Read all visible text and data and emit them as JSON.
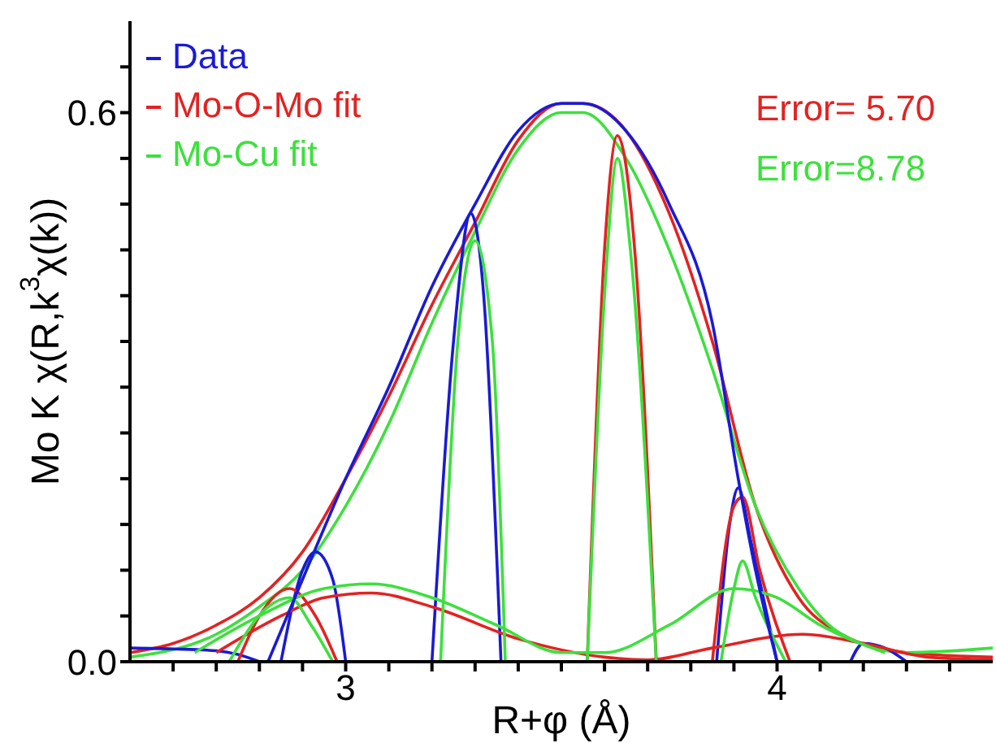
{
  "chart_data": {
    "type": "line",
    "xlabel": "R+φ (Å)",
    "ylabel": "Mo K χ(R,k$^{3}$χ(k))",
    "xlim": [
      2.5,
      4.5
    ],
    "xticks": [
      {
        "value": 2.6,
        "label": null
      },
      {
        "value": 2.7,
        "label": null
      },
      {
        "value": 2.8,
        "label": null
      },
      {
        "value": 2.9,
        "label": null
      },
      3,
      {
        "value": 3.1,
        "label": null
      },
      {
        "value": 3.2,
        "label": null
      },
      {
        "value": 3.3,
        "label": null
      },
      {
        "value": 3.4,
        "label": null
      },
      {
        "value": 3.5,
        "label": null
      },
      {
        "value": 3.6,
        "label": null
      },
      {
        "value": 3.7,
        "label": null
      },
      {
        "value": 3.8,
        "label": null
      },
      {
        "value": 3.9,
        "label": null
      },
      4,
      {
        "value": 4.1,
        "label": null
      },
      {
        "value": 4.2,
        "label": null
      },
      {
        "value": 4.3,
        "label": null
      },
      {
        "value": 4.4,
        "label": null
      }
    ],
    "ylim": [
      0,
      0.7
    ],
    "yticks": [
      {
        "value": 0,
        "label": "0.0"
      },
      {
        "value": 0.05,
        "label": null
      },
      {
        "value": 0.1,
        "label": null
      },
      {
        "value": 0.15,
        "label": null
      },
      {
        "value": 0.2,
        "label": null
      },
      {
        "value": 0.25,
        "label": null
      },
      {
        "value": 0.3,
        "label": null
      },
      {
        "value": 0.35,
        "label": null
      },
      {
        "value": 0.4,
        "label": null
      },
      {
        "value": 0.45,
        "label": null
      },
      {
        "value": 0.5,
        "label": null
      },
      {
        "value": 0.55,
        "label": null
      },
      {
        "value": 0.6,
        "label": "0.6"
      },
      {
        "value": 0.65,
        "label": null
      }
    ],
    "grid": false,
    "legend": "top left",
    "marker": "none",
    "line_style": "solid",
    "annotations": [
      "Error= 5.70",
      "Error=8.78"
    ],
    "series": [
      {
        "name": "Data",
        "color": "#1a1ad6",
        "x": [
          2.82,
          2.9,
          3.0,
          3.1,
          3.2,
          3.3,
          3.4,
          3.5,
          3.55,
          3.65,
          3.75,
          3.85,
          3.91,
          3.95,
          4.0
        ],
        "values": [
          0,
          0.09,
          0.2,
          0.3,
          0.41,
          0.5,
          0.58,
          0.61,
          0.61,
          0.58,
          0.5,
          0.37,
          0.2,
          0.1,
          0
        ]
      },
      {
        "name": "Mo-O-Mo fit",
        "color": "#e32222",
        "x": [
          2.5,
          2.6,
          2.7,
          2.8,
          2.9,
          3.0,
          3.1,
          3.2,
          3.3,
          3.4,
          3.5,
          3.55,
          3.65,
          3.75,
          3.85,
          3.95,
          4.05,
          4.15,
          4.3,
          4.5
        ],
        "values": [
          0.01,
          0.02,
          0.04,
          0.07,
          0.12,
          0.2,
          0.29,
          0.39,
          0.48,
          0.57,
          0.61,
          0.61,
          0.58,
          0.49,
          0.35,
          0.17,
          0.07,
          0.03,
          0.01,
          0.005
        ]
      },
      {
        "name": "Mo-Cu fit",
        "color": "#3de03d",
        "x": [
          2.5,
          2.7,
          2.8,
          2.9,
          3.0,
          3.1,
          3.2,
          3.3,
          3.4,
          3.5,
          3.55,
          3.65,
          3.75,
          3.85,
          3.95,
          4.05,
          4.15,
          4.3,
          4.5
        ],
        "values": [
          0.005,
          0.03,
          0.06,
          0.1,
          0.17,
          0.26,
          0.37,
          0.47,
          0.56,
          0.6,
          0.6,
          0.55,
          0.45,
          0.32,
          0.17,
          0.08,
          0.03,
          0.01,
          0.015
        ]
      },
      {
        "color": "#1a1ad6",
        "x": [
          2.5,
          2.6,
          2.7,
          2.75,
          2.8
        ],
        "values": [
          0.015,
          0.014,
          0.012,
          0.008,
          0
        ]
      },
      {
        "color": "#1a1ad6",
        "x": [
          2.85,
          2.9,
          2.93,
          2.97,
          3.0
        ],
        "values": [
          0,
          0.1,
          0.12,
          0.09,
          0
        ]
      },
      {
        "color": "#1a1ad6",
        "x": [
          3.2,
          3.25,
          3.29,
          3.32,
          3.36
        ],
        "values": [
          0,
          0.35,
          0.49,
          0.4,
          0
        ]
      },
      {
        "color": "#1a1ad6",
        "x": [
          3.86,
          3.89,
          3.91,
          3.94,
          4.0
        ],
        "values": [
          0,
          0.15,
          0.19,
          0.13,
          0
        ]
      },
      {
        "color": "#1a1ad6",
        "x": [
          4.17,
          4.2,
          4.25,
          4.3
        ],
        "values": [
          0,
          0.02,
          0.015,
          0
        ]
      },
      {
        "color": "#e32222",
        "x": [
          2.75,
          2.8,
          2.87,
          2.93,
          2.98
        ],
        "values": [
          0,
          0.05,
          0.08,
          0.05,
          0
        ]
      },
      {
        "color": "#e32222",
        "x": [
          2.7,
          2.85,
          2.95,
          3.06,
          3.2,
          3.4,
          3.6,
          3.7,
          3.85,
          4.06,
          4.2,
          4.35,
          4.5
        ],
        "values": [
          0.01,
          0.05,
          0.07,
          0.075,
          0.06,
          0.025,
          0.005,
          0.002,
          0.015,
          0.03,
          0.02,
          0.005,
          0.002
        ]
      },
      {
        "color": "#e32222",
        "x": [
          3.56,
          3.6,
          3.63,
          3.67,
          3.72
        ],
        "values": [
          0,
          0.45,
          0.575,
          0.45,
          0
        ]
      },
      {
        "color": "#e32222",
        "x": [
          3.85,
          3.9,
          3.92,
          3.96,
          4.03
        ],
        "values": [
          0,
          0.17,
          0.18,
          0.1,
          0
        ]
      },
      {
        "color": "#3de03d",
        "x": [
          2.73,
          2.82,
          2.87,
          2.92,
          2.97
        ],
        "values": [
          0,
          0.06,
          0.07,
          0.04,
          0
        ]
      },
      {
        "color": "#3de03d",
        "x": [
          2.65,
          2.8,
          2.95,
          3.06,
          3.2,
          3.35,
          3.5,
          3.6,
          3.75,
          3.9,
          4.0,
          4.1,
          4.25
        ],
        "values": [
          0.01,
          0.05,
          0.08,
          0.085,
          0.07,
          0.04,
          0.01,
          0.01,
          0.04,
          0.08,
          0.07,
          0.04,
          0.01
        ]
      },
      {
        "color": "#3de03d",
        "x": [
          3.22,
          3.26,
          3.3,
          3.34,
          3.37
        ],
        "values": [
          0,
          0.35,
          0.46,
          0.35,
          0
        ]
      },
      {
        "color": "#3de03d",
        "x": [
          3.56,
          3.6,
          3.63,
          3.66,
          3.72
        ],
        "values": [
          0,
          0.4,
          0.55,
          0.45,
          0
        ]
      },
      {
        "color": "#3de03d",
        "x": [
          3.87,
          3.9,
          3.92,
          3.95,
          4.02
        ],
        "values": [
          0,
          0.08,
          0.11,
          0.07,
          0
        ]
      }
    ]
  }
}
